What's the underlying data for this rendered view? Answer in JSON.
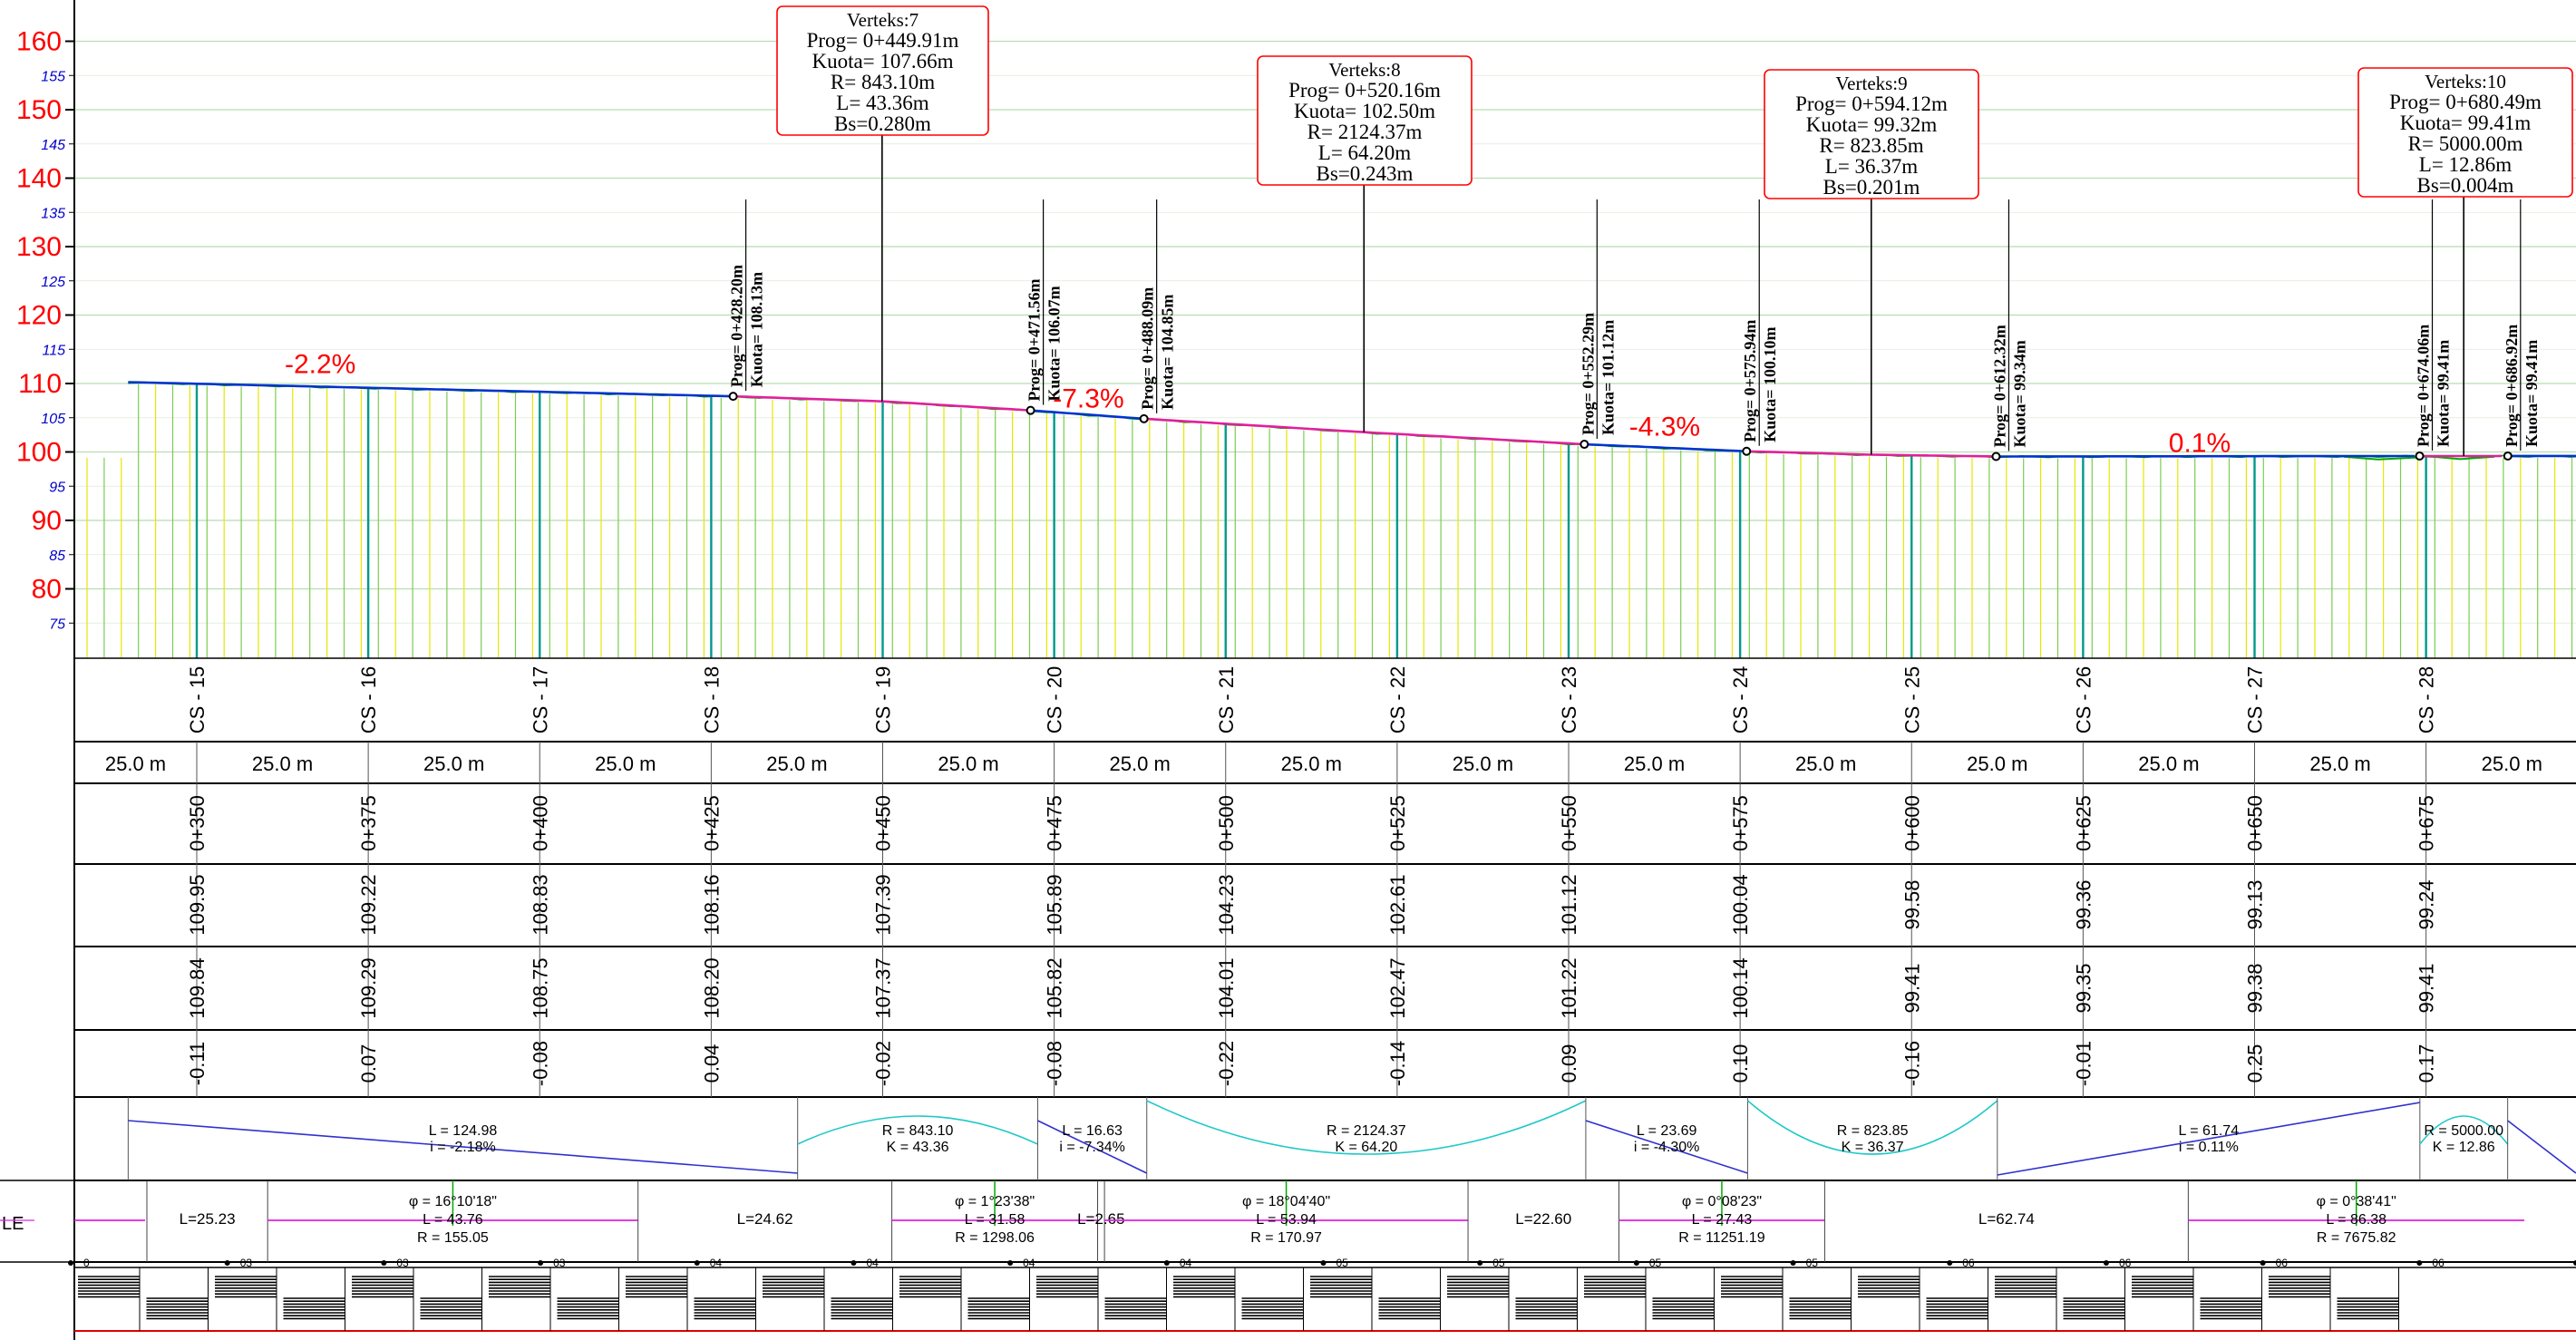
{
  "y_axis": {
    "major": [
      "160",
      "150",
      "140",
      "130",
      "120",
      "110",
      "100",
      "90",
      "80"
    ],
    "minor": [
      "155",
      "145",
      "135",
      "125",
      "115",
      "105",
      "95",
      "85",
      "75"
    ],
    "major_values": [
      160,
      150,
      140,
      130,
      120,
      110,
      100,
      90,
      80
    ],
    "minor_values": [
      155,
      145,
      135,
      125,
      115,
      105,
      95,
      85,
      75
    ]
  },
  "grades": [
    {
      "text": "-2.2%",
      "prog": 368,
      "elev": 111.5
    },
    {
      "text": "-7.3%",
      "prog": 480,
      "elev": 106.5
    },
    {
      "text": "-4.3%",
      "prog": 564,
      "elev": 102.4
    },
    {
      "text": "0.1%",
      "prog": 642,
      "elev": 100.0
    }
  ],
  "vertices": [
    {
      "lines": [
        "Verteks:7",
        "Prog=  0+449.91m",
        "Kuota=  107.66m",
        "R=  843.10m",
        "L=  43.36m",
        "Bs=0.280m"
      ],
      "prog": 449.91
    },
    {
      "lines": [
        "Verteks:8",
        "Prog=  0+520.16m",
        "Kuota=  102.50m",
        "R=  2124.37m",
        "L=  64.20m",
        "Bs=0.243m"
      ],
      "prog": 520.16
    },
    {
      "lines": [
        "Verteks:9",
        "Prog=  0+594.12m",
        "Kuota=  99.32m",
        "R=  823.85m",
        "L=  36.37m",
        "Bs=0.201m"
      ],
      "prog": 594.12
    },
    {
      "lines": [
        "Verteks:10",
        "Prog=  0+680.49m",
        "Kuota=  99.41m",
        "R=  5000.00m",
        "L=  12.86m",
        "Bs=0.004m"
      ],
      "prog": 680.49
    }
  ],
  "points": [
    {
      "prog_label": "Prog=  0+428.20m",
      "kuota_label": "Kuota=  108.13m",
      "prog": 428.2,
      "elev": 108.13
    },
    {
      "prog_label": "Prog=  0+471.56m",
      "kuota_label": "Kuota=  106.07m",
      "prog": 471.56,
      "elev": 106.07
    },
    {
      "prog_label": "Prog=  0+488.09m",
      "kuota_label": "Kuota=  104.85m",
      "prog": 488.09,
      "elev": 104.85
    },
    {
      "prog_label": "Prog=  0+552.29m",
      "kuota_label": "Kuota=  101.12m",
      "prog": 552.29,
      "elev": 101.12
    },
    {
      "prog_label": "Prog=  0+575.94m",
      "kuota_label": "Kuota=  100.10m",
      "prog": 575.94,
      "elev": 100.1
    },
    {
      "prog_label": "Prog=  0+612.32m",
      "kuota_label": "Kuota=  99.34m",
      "prog": 612.32,
      "elev": 99.34
    },
    {
      "prog_label": "Prog=  0+674.06m",
      "kuota_label": "Kuota=  99.41m",
      "prog": 674.06,
      "elev": 99.41
    },
    {
      "prog_label": "Prog=  0+686.92m",
      "kuota_label": "Kuota=  99.41m",
      "prog": 686.92,
      "elev": 99.41
    }
  ],
  "stations": [
    {
      "cs": "CS - 15",
      "sta": "0+350",
      "design": "109.95",
      "existing": "109.84",
      "diff": "-0.11",
      "prog": 350
    },
    {
      "cs": "CS - 16",
      "sta": "0+375",
      "design": "109.22",
      "existing": "109.29",
      "diff": "0.07",
      "prog": 375
    },
    {
      "cs": "CS - 17",
      "sta": "0+400",
      "design": "108.83",
      "existing": "108.75",
      "diff": "-0.08",
      "prog": 400
    },
    {
      "cs": "CS - 18",
      "sta": "0+425",
      "design": "108.16",
      "existing": "108.20",
      "diff": "0.04",
      "prog": 425
    },
    {
      "cs": "CS - 19",
      "sta": "0+450",
      "design": "107.39",
      "existing": "107.37",
      "diff": "-0.02",
      "prog": 450
    },
    {
      "cs": "CS - 20",
      "sta": "0+475",
      "design": "105.89",
      "existing": "105.82",
      "diff": "-0.08",
      "prog": 475
    },
    {
      "cs": "CS - 21",
      "sta": "0+500",
      "design": "104.23",
      "existing": "104.01",
      "diff": "-0.22",
      "prog": 500
    },
    {
      "cs": "CS - 22",
      "sta": "0+525",
      "design": "102.61",
      "existing": "102.47",
      "diff": "-0.14",
      "prog": 525
    },
    {
      "cs": "CS - 23",
      "sta": "0+550",
      "design": "101.12",
      "existing": "101.22",
      "diff": "0.09",
      "prog": 550
    },
    {
      "cs": "CS - 24",
      "sta": "0+575",
      "design": "100.04",
      "existing": "100.14",
      "diff": "0.10",
      "prog": 575
    },
    {
      "cs": "CS - 25",
      "sta": "0+600",
      "design": "99.58",
      "existing": "99.41",
      "diff": "-0.16",
      "prog": 600
    },
    {
      "cs": "CS - 26",
      "sta": "0+625",
      "design": "99.36",
      "existing": "99.35",
      "diff": "-0.01",
      "prog": 625
    },
    {
      "cs": "CS - 27",
      "sta": "0+650",
      "design": "99.13",
      "existing": "99.38",
      "diff": "0.25",
      "prog": 650
    },
    {
      "cs": "CS - 28",
      "sta": "0+675",
      "design": "99.24",
      "existing": "99.41",
      "diff": "0.17",
      "prog": 675
    }
  ],
  "distance_label": "25.0 m",
  "vertical_alignment": [
    {
      "kind": "grade",
      "p1": "L = 124.98",
      "p2": "i = -2.18%",
      "from": 340,
      "to": 437.6
    },
    {
      "kind": "curve",
      "p1": "R = 843.10",
      "p2": "K = 43.36",
      "from": 437.6,
      "to": 472.6
    },
    {
      "kind": "grade",
      "p1": "L = 16.63",
      "p2": "i = -7.34%",
      "from": 472.6,
      "to": 488.5
    },
    {
      "kind": "curve",
      "p1": "R = 2124.37",
      "p2": "K = 64.20",
      "from": 488.5,
      "to": 552.5
    },
    {
      "kind": "grade",
      "p1": "L = 23.69",
      "p2": "i = -4.30%",
      "from": 552.5,
      "to": 576.1
    },
    {
      "kind": "curve",
      "p1": "R = 823.85",
      "p2": "K = 36.37",
      "from": 576.1,
      "to": 612.5
    },
    {
      "kind": "grade",
      "p1": "L = 61.74",
      "p2": "i = 0.11%",
      "from": 612.5,
      "to": 674.1
    },
    {
      "kind": "curve",
      "p1": "R = 5000.00",
      "p2": "K = 12.86",
      "from": 674.1,
      "to": 686.9
    },
    {
      "kind": "grade",
      "p1": "",
      "p2": "",
      "from": 686.9,
      "to": 697
    }
  ],
  "horizontal_alignment": {
    "row_label": "LE",
    "segments": [
      {
        "kind": "tangent",
        "lines": [
          "L=25.23"
        ],
        "from": 350,
        "to": 368
      },
      {
        "kind": "curve",
        "lines": [
          "φ = 16°10'18\"",
          "L = 43.76",
          "R = 155.05"
        ],
        "from": 368,
        "to": 422
      },
      {
        "kind": "tangent",
        "lines": [
          "L=24.62"
        ],
        "from": 422,
        "to": 459
      },
      {
        "kind": "curve",
        "lines": [
          "φ = 1°23'38\"",
          "L = 31.58",
          "R = 1298.06"
        ],
        "from": 459,
        "to": 489
      },
      {
        "kind": "tangent",
        "lines": [
          "L=2.65"
        ],
        "from": 489,
        "to": 490
      },
      {
        "kind": "curve",
        "lines": [
          "φ = 18°04'40\"",
          "L = 53.94",
          "R = 170.97"
        ],
        "from": 490,
        "to": 543
      },
      {
        "kind": "tangent",
        "lines": [
          "L=22.60"
        ],
        "from": 543,
        "to": 565
      },
      {
        "kind": "curve",
        "lines": [
          "φ = 0°08'23\"",
          "L = 27.43",
          "R = 11251.19"
        ],
        "from": 565,
        "to": 595
      },
      {
        "kind": "tangent",
        "lines": [
          "L=62.74"
        ],
        "from": 595,
        "to": 648
      },
      {
        "kind": "curve",
        "lines": [
          "φ = 0°38'41\"",
          "L = 86.38",
          "R = 7675.82"
        ],
        "from": 648,
        "to": 697
      }
    ],
    "tick_labels": [
      "0",
      "03",
      "03",
      "03",
      "04",
      "04",
      "04",
      "04",
      "05",
      "05",
      "05",
      "05",
      "06",
      "06",
      "06",
      "06",
      "06"
    ]
  },
  "colors": {
    "axis_major": "#ff0000",
    "axis_minor": "#0000cc",
    "design_line": "#0033cc",
    "curve_line": "#e0209a",
    "existing_ground": "#00aa00",
    "grade_text": "#ff0000",
    "hatch_yellow": "#e6e600",
    "hatch_green": "#7acc50",
    "station_line": "#009988",
    "va_curve": "#20c8c8",
    "va_grade": "#3030d0",
    "ha_line": "#e020e0",
    "callout_border": "#ff0000"
  }
}
